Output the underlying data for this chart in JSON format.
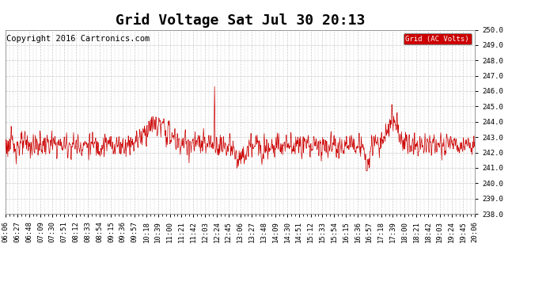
{
  "title": "Grid Voltage Sat Jul 30 20:13",
  "copyright": "Copyright 2016 Cartronics.com",
  "legend_label": "Grid (AC Volts)",
  "legend_bg": "#cc0000",
  "legend_fg": "#ffffff",
  "line_color": "#cc0000",
  "bg_color": "#ffffff",
  "grid_color": "#c8c8c8",
  "ylim": [
    238.0,
    250.0
  ],
  "yticks": [
    238.0,
    239.0,
    240.0,
    241.0,
    242.0,
    243.0,
    244.0,
    245.0,
    246.0,
    247.0,
    248.0,
    249.0,
    250.0
  ],
  "xtick_labels": [
    "06:06",
    "06:27",
    "06:48",
    "07:09",
    "07:30",
    "07:51",
    "08:12",
    "08:33",
    "08:54",
    "09:15",
    "09:36",
    "09:57",
    "10:18",
    "10:39",
    "11:00",
    "11:21",
    "11:42",
    "12:03",
    "12:24",
    "12:45",
    "13:06",
    "13:27",
    "13:48",
    "14:09",
    "14:30",
    "14:51",
    "15:12",
    "15:33",
    "15:54",
    "16:15",
    "16:36",
    "16:57",
    "17:18",
    "17:39",
    "18:00",
    "18:21",
    "18:42",
    "19:03",
    "19:24",
    "19:45",
    "20:06"
  ],
  "title_fontsize": 13,
  "tick_fontsize": 6.5,
  "copyright_fontsize": 7.5
}
